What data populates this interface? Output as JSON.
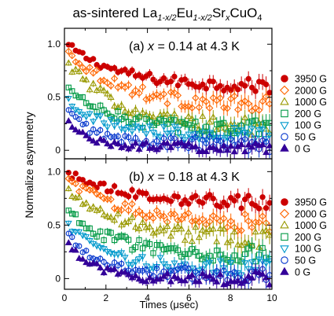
{
  "title": {
    "prefix": "as-sintered La",
    "sub1": "1-x/2",
    "mid1": "Eu",
    "sub2": "1-x/2",
    "mid2": "Sr",
    "sub3": "x",
    "suffix": "CuO",
    "sub4": "4"
  },
  "chart_data": {
    "type": "scatter",
    "xlabel": "Times (μsec)",
    "ylabel": "Normalize asymmetry",
    "xlim": [
      0,
      10
    ],
    "x_ticks": [
      "0",
      "2",
      "4",
      "6",
      "8",
      "10"
    ],
    "legend_position": "right",
    "panels": [
      {
        "label_prefix": "(a) ",
        "label_var": "x",
        "label_suffix": " = 0.14 at 4.3 K",
        "ylim": [
          -0.08,
          1.15
        ],
        "y_ticks": [
          {
            "v": 0,
            "t": "0"
          },
          {
            "v": 0.5,
            "t": "0.5"
          },
          {
            "v": 1,
            "t": "1.0"
          }
        ],
        "series": [
          {
            "name": "3950 G",
            "marker": "circle-filled",
            "color": "#cc0000",
            "start": 1.02,
            "end": 0.62,
            "tau": 2.5,
            "base": 0.6,
            "noise": 0.03
          },
          {
            "name": "2000 G",
            "marker": "diamond-open",
            "color": "#ff6600",
            "start": 0.96,
            "end": 0.42,
            "tau": 2.8,
            "base": 0.4,
            "noise": 0.04
          },
          {
            "name": "1000 G",
            "marker": "triangle-open",
            "color": "#999900",
            "start": 0.86,
            "end": 0.22,
            "tau": 2.6,
            "base": 0.2,
            "noise": 0.04
          },
          {
            "name": "200 G",
            "marker": "square-open",
            "color": "#009944",
            "start": 0.62,
            "end": 0.21,
            "tau": 2.0,
            "base": 0.2,
            "noise": 0.04
          },
          {
            "name": "100 G",
            "marker": "triangle-down-open",
            "color": "#0099cc",
            "start": 0.52,
            "end": 0.17,
            "tau": 1.6,
            "base": 0.16,
            "noise": 0.04
          },
          {
            "name": "50 G",
            "marker": "circle-open",
            "color": "#0033cc",
            "start": 0.42,
            "end": 0.07,
            "tau": 1.3,
            "base": 0.06,
            "noise": 0.035
          },
          {
            "name": "0 G",
            "marker": "triangle-filled",
            "color": "#330099",
            "start": 0.32,
            "end": 0.03,
            "tau": 1.0,
            "base": 0.03,
            "noise": 0.025
          }
        ]
      },
      {
        "label_prefix": "(b) ",
        "label_var": "x",
        "label_suffix": " = 0.18 at 4.3 K",
        "ylim": [
          -0.1,
          1.12
        ],
        "y_ticks": [
          {
            "v": 0,
            "t": "0"
          },
          {
            "v": 0.5,
            "t": "0.5"
          },
          {
            "v": 1,
            "t": "1.0"
          }
        ],
        "series": [
          {
            "name": "3950 G",
            "marker": "circle-filled",
            "color": "#cc0000",
            "start": 1.0,
            "end": 0.72,
            "tau": 3.0,
            "base": 0.7,
            "noise": 0.03
          },
          {
            "name": "2000 G",
            "marker": "diamond-open",
            "color": "#ff6600",
            "start": 0.95,
            "end": 0.52,
            "tau": 3.0,
            "base": 0.5,
            "noise": 0.04
          },
          {
            "name": "1000 G",
            "marker": "triangle-open",
            "color": "#999900",
            "start": 0.86,
            "end": 0.38,
            "tau": 2.8,
            "base": 0.36,
            "noise": 0.04
          },
          {
            "name": "200 G",
            "marker": "square-open",
            "color": "#009944",
            "start": 0.66,
            "end": 0.24,
            "tau": 2.2,
            "base": 0.22,
            "noise": 0.04
          },
          {
            "name": "100 G",
            "marker": "triangle-down-open",
            "color": "#0099cc",
            "start": 0.55,
            "end": 0.12,
            "tau": 1.8,
            "base": 0.1,
            "noise": 0.04
          },
          {
            "name": "50 G",
            "marker": "circle-open",
            "color": "#0033cc",
            "start": 0.46,
            "end": 0.05,
            "tau": 1.5,
            "base": 0.04,
            "noise": 0.035
          },
          {
            "name": "0 G",
            "marker": "triangle-filled",
            "color": "#330099",
            "start": 0.38,
            "end": 0.01,
            "tau": 1.2,
            "base": 0.0,
            "noise": 0.03
          }
        ]
      }
    ]
  }
}
